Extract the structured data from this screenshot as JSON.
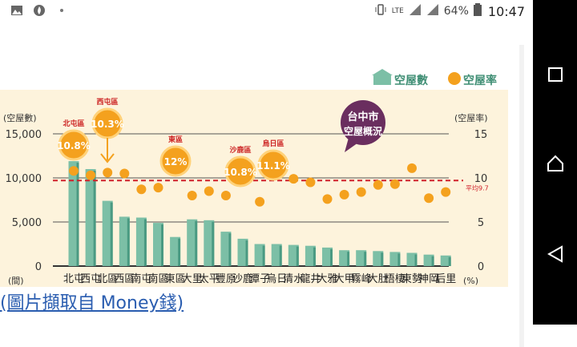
{
  "status_bar": {
    "left_icons": [
      "image-icon",
      "flame-icon",
      "more-icon"
    ],
    "network": "LTE",
    "battery": "64%",
    "time": "10:47"
  },
  "chart_data": {
    "type": "bar",
    "legend": {
      "bars": "空屋數",
      "dots": "空屋率"
    },
    "y_left_label": "(空屋數)",
    "y_left_unit": "(間)",
    "y_right_label": "(空屋率)",
    "y_right_unit": "(%)",
    "y_left_ticks": [
      "0",
      "5,000",
      "10,000",
      "15,000"
    ],
    "y_right_ticks": [
      "0",
      "5",
      "10",
      "15"
    ],
    "ylim_left": [
      0,
      15000
    ],
    "ylim_right": [
      0,
      15
    ],
    "average_label": "平均9.7",
    "average_value": 9.7,
    "badge": [
      "台中市",
      "空屋概況"
    ],
    "categories": [
      "北屯",
      "西屯",
      "北區",
      "西區",
      "南屯",
      "南區",
      "東區",
      "大里",
      "太平",
      "豐原",
      "沙鹿",
      "潭子",
      "烏日",
      "清水",
      "龍井",
      "大雅",
      "大甲",
      "霧峰",
      "大肚",
      "梧棲",
      "東勢",
      "神岡",
      "后里"
    ],
    "series": [
      {
        "name": "空屋數",
        "values": [
          11900,
          11000,
          7400,
          5600,
          5500,
          4900,
          3300,
          5300,
          5200,
          3900,
          3100,
          2500,
          2500,
          2400,
          2300,
          2100,
          1800,
          1800,
          1700,
          1600,
          1500,
          1300,
          1200
        ]
      },
      {
        "name": "空屋率",
        "values": [
          10.8,
          10.3,
          10.6,
          10.5,
          8.7,
          8.9,
          12.0,
          8.0,
          8.5,
          8.0,
          10.8,
          7.3,
          11.1,
          9.9,
          9.5,
          7.6,
          8.1,
          8.4,
          9.2,
          9.3,
          11.1,
          7.7,
          8.4
        ]
      }
    ],
    "callouts": [
      {
        "region": "北屯區",
        "rate": "10.8%",
        "index": 0
      },
      {
        "region": "西屯區",
        "rate": "10.3%",
        "index": 1
      },
      {
        "region": "東區",
        "rate": "12%",
        "index": 6
      },
      {
        "region": "沙鹿區",
        "rate": "10.8%",
        "index": 10
      },
      {
        "region": "烏日區",
        "rate": "11.1%",
        "index": 12
      }
    ],
    "colors": {
      "bar": "#7cbfa6",
      "bar_dark": "#4a9a82",
      "dot": "#f4a11e",
      "avg_line": "#d0202a",
      "badge": "#6a2e5f",
      "background": "#fdf3dc"
    }
  },
  "caption": "(圖片擷取自 Money錢)"
}
